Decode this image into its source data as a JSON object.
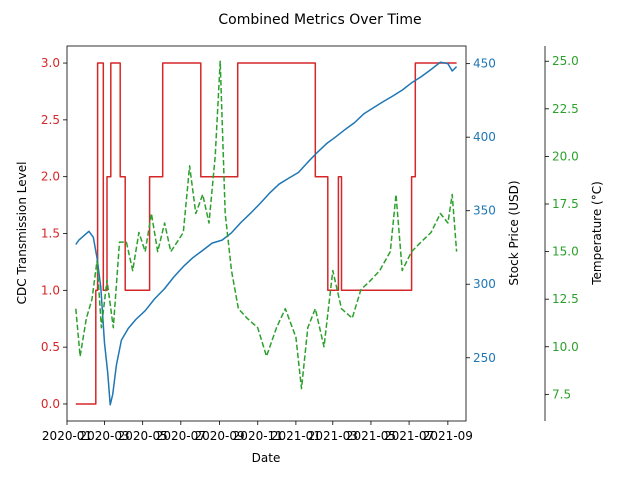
{
  "chart_data": {
    "type": "line",
    "title": "Combined Metrics Over Time",
    "xlabel": "Date",
    "x_range": [
      "2020-01-01",
      "2021-09-30"
    ],
    "x_ticks": [
      "2020-01",
      "2020-03",
      "2020-05",
      "2020-07",
      "2020-09",
      "2020-11",
      "2021-01",
      "2021-03",
      "2021-05",
      "2021-07",
      "2021-09"
    ],
    "axes": {
      "left": {
        "label": "CDC Transmission Level",
        "color": "#d62728",
        "ylim": [
          -0.15,
          3.15
        ],
        "ticks": [
          "0.0",
          "0.5",
          "1.0",
          "1.5",
          "2.0",
          "2.5",
          "3.0"
        ]
      },
      "right1": {
        "label": "Stock Price (USD)",
        "color": "#1f77b4",
        "ylim": [
          207,
          462
        ],
        "ticks": [
          "250",
          "300",
          "350",
          "400",
          "450"
        ]
      },
      "right2": {
        "label": "Temperature (°C)",
        "color": "#2ca02c",
        "ylim": [
          6.1,
          25.8
        ],
        "ticks": [
          "7.5",
          "10.0",
          "12.5",
          "15.0",
          "17.5",
          "20.0",
          "22.5",
          "25.0"
        ]
      }
    },
    "grid": false,
    "legend": "none",
    "series": [
      {
        "axis": "left",
        "style": "step",
        "dash": "solid",
        "color": "#d62728",
        "points": [
          [
            "2020-01-15",
            0
          ],
          [
            "2020-02-15",
            0
          ],
          [
            "2020-02-16",
            1
          ],
          [
            "2020-02-19",
            3
          ],
          [
            "2020-02-27",
            3
          ],
          [
            "2020-02-28",
            1
          ],
          [
            "2020-03-05",
            2
          ],
          [
            "2020-03-10",
            2
          ],
          [
            "2020-03-11",
            3
          ],
          [
            "2020-03-25",
            3
          ],
          [
            "2020-03-26",
            2
          ],
          [
            "2020-04-02",
            2
          ],
          [
            "2020-04-03",
            1
          ],
          [
            "2020-05-11",
            1
          ],
          [
            "2020-05-12",
            2
          ],
          [
            "2020-06-01",
            2
          ],
          [
            "2020-06-02",
            3
          ],
          [
            "2020-08-01",
            3
          ],
          [
            "2020-08-02",
            2
          ],
          [
            "2020-09-29",
            2
          ],
          [
            "2020-09-30",
            3
          ],
          [
            "2021-01-31",
            3
          ],
          [
            "2021-02-01",
            2
          ],
          [
            "2021-02-20",
            2
          ],
          [
            "2021-02-21",
            1
          ],
          [
            "2021-03-09",
            1
          ],
          [
            "2021-03-10",
            2
          ],
          [
            "2021-03-14",
            2
          ],
          [
            "2021-03-15",
            1
          ],
          [
            "2021-07-04",
            1
          ],
          [
            "2021-07-05",
            2
          ],
          [
            "2021-07-10",
            2
          ],
          [
            "2021-07-11",
            3
          ],
          [
            "2021-09-15",
            3
          ]
        ]
      },
      {
        "axis": "right1",
        "style": "line",
        "dash": "solid",
        "color": "#1f77b4",
        "points": [
          [
            "2020-01-15",
            327
          ],
          [
            "2020-01-20",
            330
          ],
          [
            "2020-01-28",
            333
          ],
          [
            "2020-02-05",
            336
          ],
          [
            "2020-02-12",
            332
          ],
          [
            "2020-02-18",
            318
          ],
          [
            "2020-02-24",
            298
          ],
          [
            "2020-03-01",
            260
          ],
          [
            "2020-03-06",
            240
          ],
          [
            "2020-03-10",
            218
          ],
          [
            "2020-03-14",
            225
          ],
          [
            "2020-03-20",
            245
          ],
          [
            "2020-03-28",
            262
          ],
          [
            "2020-04-08",
            270
          ],
          [
            "2020-04-20",
            276
          ],
          [
            "2020-05-05",
            282
          ],
          [
            "2020-05-20",
            290
          ],
          [
            "2020-06-05",
            297
          ],
          [
            "2020-06-20",
            305
          ],
          [
            "2020-07-05",
            312
          ],
          [
            "2020-07-20",
            318
          ],
          [
            "2020-08-05",
            323
          ],
          [
            "2020-08-20",
            328
          ],
          [
            "2020-09-05",
            330
          ],
          [
            "2020-09-20",
            335
          ],
          [
            "2020-10-05",
            342
          ],
          [
            "2020-10-20",
            348
          ],
          [
            "2020-11-05",
            355
          ],
          [
            "2020-11-20",
            362
          ],
          [
            "2020-12-05",
            368
          ],
          [
            "2020-12-20",
            372
          ],
          [
            "2021-01-05",
            376
          ],
          [
            "2021-01-20",
            383
          ],
          [
            "2021-02-05",
            390
          ],
          [
            "2021-02-20",
            396
          ],
          [
            "2021-03-05",
            400
          ],
          [
            "2021-03-20",
            405
          ],
          [
            "2021-04-05",
            410
          ],
          [
            "2021-04-20",
            416
          ],
          [
            "2021-05-05",
            420
          ],
          [
            "2021-05-20",
            424
          ],
          [
            "2021-06-05",
            428
          ],
          [
            "2021-06-20",
            432
          ],
          [
            "2021-07-05",
            437
          ],
          [
            "2021-07-20",
            441
          ],
          [
            "2021-08-05",
            446
          ],
          [
            "2021-08-20",
            451
          ],
          [
            "2021-09-01",
            450
          ],
          [
            "2021-09-08",
            445
          ],
          [
            "2021-09-15",
            448
          ]
        ]
      },
      {
        "axis": "right2",
        "style": "line",
        "dash": "dashed",
        "color": "#2ca02c",
        "points": [
          [
            "2020-01-15",
            12.0
          ],
          [
            "2020-01-22",
            9.5
          ],
          [
            "2020-02-01",
            11.5
          ],
          [
            "2020-02-10",
            12.5
          ],
          [
            "2020-02-18",
            14.5
          ],
          [
            "2020-02-25",
            11.0
          ],
          [
            "2020-03-05",
            13.5
          ],
          [
            "2020-03-15",
            11.0
          ],
          [
            "2020-03-25",
            15.5
          ],
          [
            "2020-04-05",
            15.5
          ],
          [
            "2020-04-15",
            14.0
          ],
          [
            "2020-04-25",
            16.0
          ],
          [
            "2020-05-05",
            15.0
          ],
          [
            "2020-05-15",
            17.0
          ],
          [
            "2020-05-25",
            15.0
          ],
          [
            "2020-06-05",
            16.5
          ],
          [
            "2020-06-15",
            15.0
          ],
          [
            "2020-06-25",
            15.5
          ],
          [
            "2020-07-05",
            16.0
          ],
          [
            "2020-07-15",
            19.5
          ],
          [
            "2020-07-25",
            17.0
          ],
          [
            "2020-08-05",
            18.0
          ],
          [
            "2020-08-15",
            16.5
          ],
          [
            "2020-08-25",
            20.0
          ],
          [
            "2020-09-02",
            25.0
          ],
          [
            "2020-09-10",
            17.0
          ],
          [
            "2020-09-20",
            14.0
          ],
          [
            "2020-10-01",
            12.0
          ],
          [
            "2020-10-15",
            11.5
          ],
          [
            "2020-11-01",
            11.0
          ],
          [
            "2020-11-15",
            9.5
          ],
          [
            "2020-12-01",
            11.0
          ],
          [
            "2020-12-15",
            12.0
          ],
          [
            "2021-01-01",
            10.5
          ],
          [
            "2021-01-10",
            7.8
          ],
          [
            "2021-01-20",
            11.0
          ],
          [
            "2021-02-01",
            12.0
          ],
          [
            "2021-02-15",
            10.0
          ],
          [
            "2021-03-01",
            14.0
          ],
          [
            "2021-03-15",
            12.0
          ],
          [
            "2021-04-01",
            11.5
          ],
          [
            "2021-04-15",
            13.0
          ],
          [
            "2021-05-01",
            13.5
          ],
          [
            "2021-05-15",
            14.0
          ],
          [
            "2021-06-01",
            15.0
          ],
          [
            "2021-06-10",
            18.0
          ],
          [
            "2021-06-20",
            14.0
          ],
          [
            "2021-07-05",
            15.0
          ],
          [
            "2021-07-20",
            15.5
          ],
          [
            "2021-08-05",
            16.0
          ],
          [
            "2021-08-20",
            17.0
          ],
          [
            "2021-09-01",
            16.5
          ],
          [
            "2021-09-08",
            18.0
          ],
          [
            "2021-09-15",
            15.0
          ]
        ]
      }
    ]
  }
}
